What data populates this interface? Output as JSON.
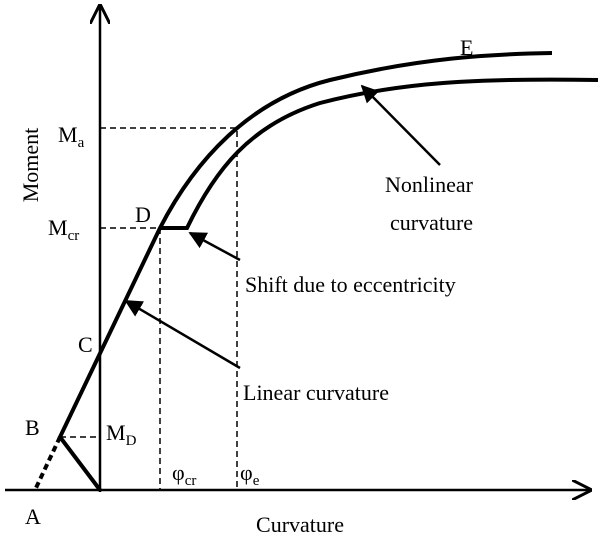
{
  "axes": {
    "y_label": "Moment",
    "x_label": "Curvature"
  },
  "points": {
    "A": "A",
    "B": "B",
    "C": "C",
    "D": "D",
    "E": "E"
  },
  "moments": {
    "Ma": {
      "main": "M",
      "sub": "a"
    },
    "Mcr": {
      "main": "M",
      "sub": "cr"
    },
    "MD": {
      "main": "M",
      "sub": "D"
    }
  },
  "curvatures": {
    "phi_cr": {
      "main": "φ",
      "sub": "cr"
    },
    "phi_e": {
      "main": "φ",
      "sub": "e"
    }
  },
  "annotations": {
    "nonlinear": [
      "Nonlinear",
      "curvature"
    ],
    "shift": "Shift due to eccentricity",
    "linear": "Linear curvature"
  }
}
